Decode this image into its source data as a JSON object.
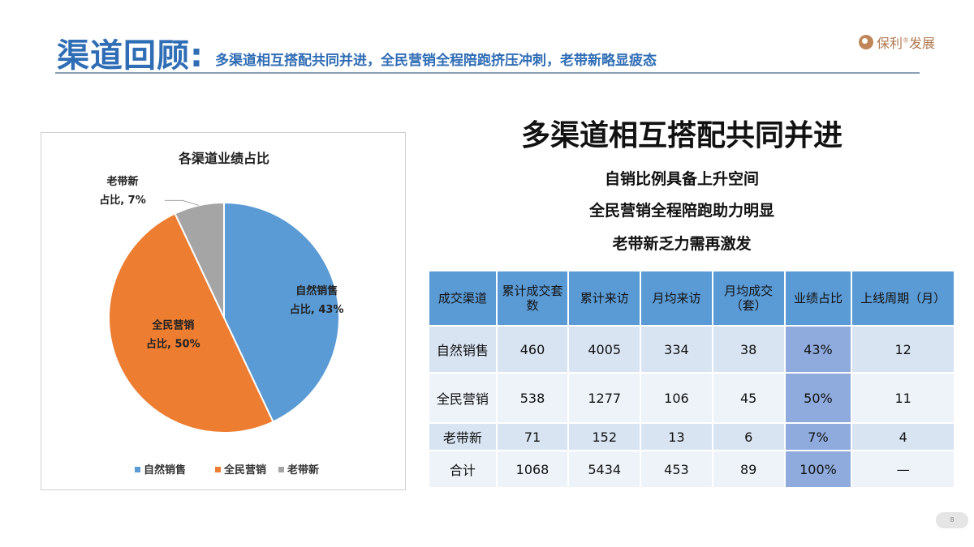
{
  "header": {
    "title": "渠道回顾",
    "colon": ":",
    "subtitle": "多渠道相互搭配共同并进，全民营销全程陪跑挤压冲刺，老带新略显疲态",
    "logo_text": "保利",
    "logo_reg": "®",
    "logo_text2": "发展"
  },
  "slogan": {
    "main": "多渠道相互搭配共同并进",
    "lines": [
      "自销比例具备上升空间",
      "全民营销全程陪跑助力明显",
      "老带新乏力需再激发"
    ]
  },
  "table": {
    "headers": [
      "成交渠道",
      "累计成交套数",
      "累计来访",
      "月均来访",
      "月均成交（套）",
      "业绩占比",
      "上线周期（月）"
    ],
    "rows": [
      [
        "自然销售",
        "460",
        "4005",
        "334",
        "38",
        "43%",
        "12"
      ],
      [
        "全民营销",
        "538",
        "1277",
        "106",
        "45",
        "50%",
        "11"
      ],
      [
        "老带新",
        "71",
        "152",
        "13",
        "6",
        "7%",
        "4"
      ],
      [
        "合计",
        "1068",
        "5434",
        "453",
        "89",
        "100%",
        "—"
      ]
    ]
  },
  "page_number": "8",
  "colors": {
    "accent": "#2f6db5",
    "blue": "#5b9bd5",
    "orange": "#ed7d31",
    "gray": "#a5a5a5"
  },
  "chart_data": {
    "type": "pie",
    "title": "各渠道业绩占比",
    "categories": [
      "自然销售",
      "全民营销",
      "老带新"
    ],
    "values": [
      43,
      50,
      7
    ],
    "colors": [
      "#5b9bd5",
      "#ed7d31",
      "#a5a5a5"
    ],
    "data_labels": [
      {
        "name": "自然销售",
        "value": "占比, 43%"
      },
      {
        "name": "全民营销",
        "value": "占比, 50%"
      },
      {
        "name": "老带新",
        "value": "占比, 7%"
      }
    ],
    "legend": "bottom"
  }
}
